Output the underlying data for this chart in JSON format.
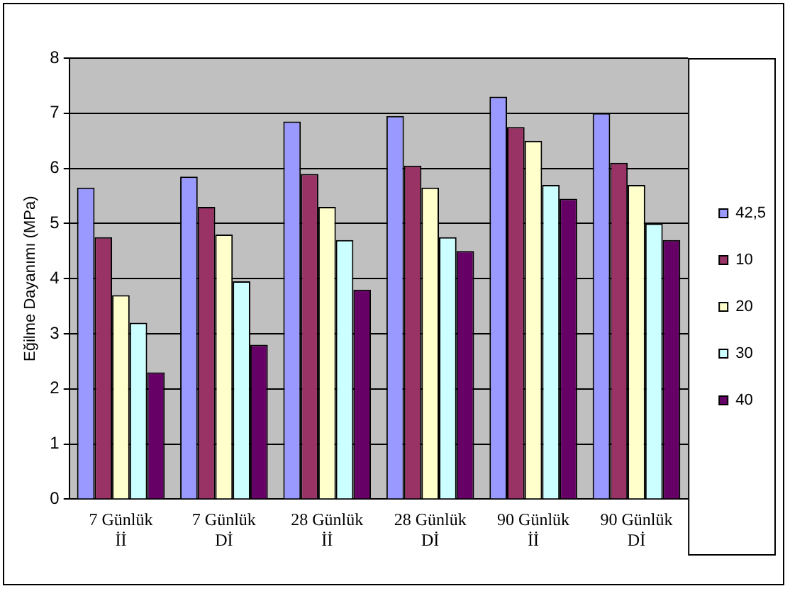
{
  "chart_data": {
    "type": "bar",
    "ylabel": "Eğilme Dayanımı (MPa)",
    "categories": [
      "7 Günlük\nİİ",
      "7 Günlük\nDİ",
      "28 Günlük\nİİ",
      "28 Günlük\nDİ",
      "90 Günlük\nİİ",
      "90 Günlük\nDİ"
    ],
    "series": [
      {
        "name": "42,5",
        "color": "#9999ff",
        "values": [
          5.65,
          5.85,
          6.85,
          6.95,
          7.3,
          7.0
        ]
      },
      {
        "name": "10",
        "color": "#993366",
        "values": [
          4.75,
          5.3,
          5.9,
          6.05,
          6.75,
          6.1
        ]
      },
      {
        "name": "20",
        "color": "#ffffcc",
        "values": [
          3.7,
          4.8,
          5.3,
          5.65,
          6.5,
          5.7
        ]
      },
      {
        "name": "30",
        "color": "#ccffff",
        "values": [
          3.2,
          3.95,
          4.7,
          4.75,
          5.7,
          5.0
        ]
      },
      {
        "name": "40",
        "color": "#660066",
        "values": [
          2.3,
          2.8,
          3.8,
          4.5,
          5.45,
          4.7
        ]
      }
    ],
    "ylim": [
      0,
      8
    ],
    "yticks": [
      0,
      1,
      2,
      3,
      4,
      5,
      6,
      7,
      8
    ],
    "grid": "y",
    "legend": "right"
  }
}
